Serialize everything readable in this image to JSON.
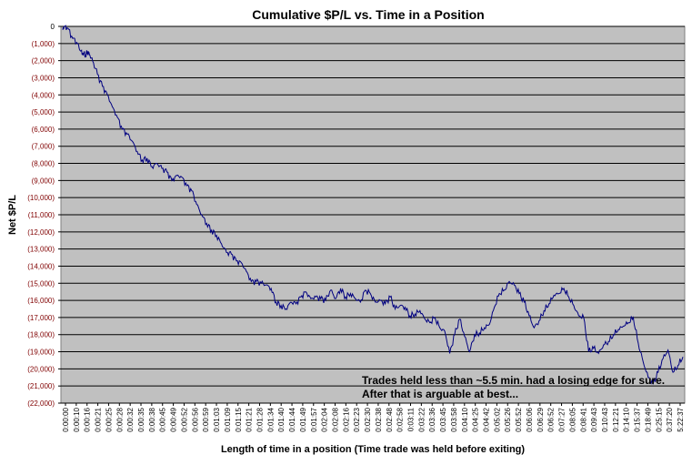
{
  "chart_data": {
    "type": "line",
    "title": "Cumulative $P/L vs. Time in a Position",
    "xlabel": "Length of time in a position (Time trade was held before exiting)",
    "ylabel": "Net $P/L",
    "ylim": [
      -22000,
      0
    ],
    "y_ticks": [
      0,
      -1000,
      -2000,
      -3000,
      -4000,
      -5000,
      -6000,
      -7000,
      -8000,
      -9000,
      -10000,
      -11000,
      -12000,
      -13000,
      -14000,
      -15000,
      -16000,
      -17000,
      -18000,
      -19000,
      -20000,
      -21000,
      -22000
    ],
    "y_tick_labels": [
      "0",
      "(1,000)",
      "(2,000)",
      "(3,000)",
      "(4,000)",
      "(5,000)",
      "(6,000)",
      "(7,000)",
      "(8,000)",
      "(9,000)",
      "(10,000)",
      "(11,000)",
      "(12,000)",
      "(13,000)",
      "(14,000)",
      "(15,000)",
      "(16,000)",
      "(17,000)",
      "(18,000)",
      "(19,000)",
      "(20,000)",
      "(21,000)",
      "(22,000)"
    ],
    "x_tick_labels": [
      "0:00:00",
      "0:00:10",
      "0:00:16",
      "0:00:21",
      "0:00:25",
      "0:00:28",
      "0:00:32",
      "0:00:35",
      "0:00:38",
      "0:00:45",
      "0:00:49",
      "0:00:52",
      "0:00:56",
      "0:00:59",
      "0:01:03",
      "0:01:09",
      "0:01:15",
      "0:01:21",
      "0:01:28",
      "0:01:34",
      "0:01:40",
      "0:01:44",
      "0:01:49",
      "0:01:57",
      "0:02:04",
      "0:02:08",
      "0:02:16",
      "0:02:23",
      "0:02:30",
      "0:02:38",
      "0:02:48",
      "0:02:58",
      "0:03:11",
      "0:03:22",
      "0:03:36",
      "0:03:45",
      "0:03:58",
      "0:04:10",
      "0:04:25",
      "0:04:42",
      "0:05:02",
      "0:05:26",
      "0:05:52",
      "0:06:06",
      "0:06:29",
      "0:06:52",
      "0:07:27",
      "0:08:05",
      "0:08:41",
      "0:09:43",
      "0:10:43",
      "0:12:21",
      "0:14:10",
      "0:15:37",
      "0:18:49",
      "0:25:15",
      "0:37:20",
      "5:22:37"
    ],
    "grid": {
      "horizontal": true,
      "vertical": false
    },
    "legend": "none",
    "plot_background": "#c0c0c0",
    "line_color": "#000080",
    "y_tick_color": "#800000",
    "series_points": [
      [
        0,
        -200
      ],
      [
        0.3,
        0
      ],
      [
        1,
        -100
      ],
      [
        2,
        -700
      ],
      [
        3,
        -1000
      ],
      [
        3.5,
        -1400
      ],
      [
        4,
        -1550
      ],
      [
        4.6,
        -1650
      ],
      [
        5,
        -1450
      ],
      [
        5.5,
        -1700
      ],
      [
        6,
        -2000
      ],
      [
        7,
        -2800
      ],
      [
        8,
        -3500
      ],
      [
        9,
        -4000
      ],
      [
        10,
        -4700
      ],
      [
        11,
        -5300
      ],
      [
        12,
        -6000
      ],
      [
        13,
        -6300
      ],
      [
        14,
        -6700
      ],
      [
        15,
        -7300
      ],
      [
        16,
        -7800
      ],
      [
        17,
        -7700
      ],
      [
        18,
        -8200
      ],
      [
        19,
        -8000
      ],
      [
        20,
        -8300
      ],
      [
        21,
        -8500
      ],
      [
        22,
        -9000
      ],
      [
        23,
        -8700
      ],
      [
        24,
        -8800
      ],
      [
        25,
        -9300
      ],
      [
        26,
        -9600
      ],
      [
        27,
        -10400
      ],
      [
        28,
        -11000
      ],
      [
        29,
        -11500
      ],
      [
        30,
        -11900
      ],
      [
        31,
        -12200
      ],
      [
        32,
        -12700
      ],
      [
        33,
        -13200
      ],
      [
        34,
        -13300
      ],
      [
        35,
        -13700
      ],
      [
        36,
        -13800
      ],
      [
        37,
        -14300
      ],
      [
        38,
        -14900
      ],
      [
        39,
        -14900
      ],
      [
        40,
        -15000
      ],
      [
        41,
        -15100
      ],
      [
        42,
        -15300
      ],
      [
        43,
        -16100
      ],
      [
        44,
        -16300
      ],
      [
        45,
        -16500
      ],
      [
        46,
        -16100
      ],
      [
        47,
        -16200
      ],
      [
        48,
        -15800
      ],
      [
        49,
        -15500
      ],
      [
        50,
        -15900
      ],
      [
        51,
        -15800
      ],
      [
        52,
        -15900
      ],
      [
        53,
        -16000
      ],
      [
        54,
        -15400
      ],
      [
        55,
        -15900
      ],
      [
        56,
        -15300
      ],
      [
        57,
        -15800
      ],
      [
        58,
        -15600
      ],
      [
        59,
        -15900
      ],
      [
        60,
        -16100
      ],
      [
        61,
        -15400
      ],
      [
        62,
        -15600
      ],
      [
        63,
        -16100
      ],
      [
        64,
        -16000
      ],
      [
        65,
        -16200
      ],
      [
        66,
        -15800
      ],
      [
        67,
        -16500
      ],
      [
        68,
        -16300
      ],
      [
        69,
        -16400
      ],
      [
        70,
        -16900
      ],
      [
        71,
        -16800
      ],
      [
        72,
        -16600
      ],
      [
        73,
        -17100
      ],
      [
        74,
        -17300
      ],
      [
        75,
        -17000
      ],
      [
        76,
        -17600
      ],
      [
        77,
        -17800
      ],
      [
        78,
        -19100
      ],
      [
        79,
        -18000
      ],
      [
        80,
        -17100
      ],
      [
        81,
        -18100
      ],
      [
        82,
        -19000
      ],
      [
        83,
        -18000
      ],
      [
        84,
        -17900
      ],
      [
        85,
        -17600
      ],
      [
        86,
        -17400
      ],
      [
        87,
        -16400
      ],
      [
        88,
        -15600
      ],
      [
        89,
        -15400
      ],
      [
        90,
        -14900
      ],
      [
        91,
        -15100
      ],
      [
        92,
        -15600
      ],
      [
        93,
        -16100
      ],
      [
        94,
        -16900
      ],
      [
        95,
        -17600
      ],
      [
        96,
        -17200
      ],
      [
        97,
        -16600
      ],
      [
        98,
        -16200
      ],
      [
        99,
        -15700
      ],
      [
        100,
        -15600
      ],
      [
        101,
        -15300
      ],
      [
        102,
        -15800
      ],
      [
        103,
        -16300
      ],
      [
        104,
        -16900
      ],
      [
        105,
        -17000
      ],
      [
        106,
        -19000
      ],
      [
        107,
        -18800
      ],
      [
        108,
        -19100
      ],
      [
        109,
        -18600
      ],
      [
        110,
        -18400
      ],
      [
        111,
        -18000
      ],
      [
        112,
        -17700
      ],
      [
        113,
        -17500
      ],
      [
        114,
        -17300
      ],
      [
        115,
        -17000
      ],
      [
        116,
        -18500
      ],
      [
        117,
        -19600
      ],
      [
        118,
        -20500
      ],
      [
        119,
        -20900
      ],
      [
        120,
        -20200
      ],
      [
        121,
        -19400
      ],
      [
        122,
        -18900
      ],
      [
        123,
        -20200
      ],
      [
        124,
        -19800
      ],
      [
        125,
        -19300
      ]
    ],
    "annotations": [
      "Trades held less than ~5.5 min. had a losing edge for sure.",
      "After that is arguable at best..."
    ]
  }
}
